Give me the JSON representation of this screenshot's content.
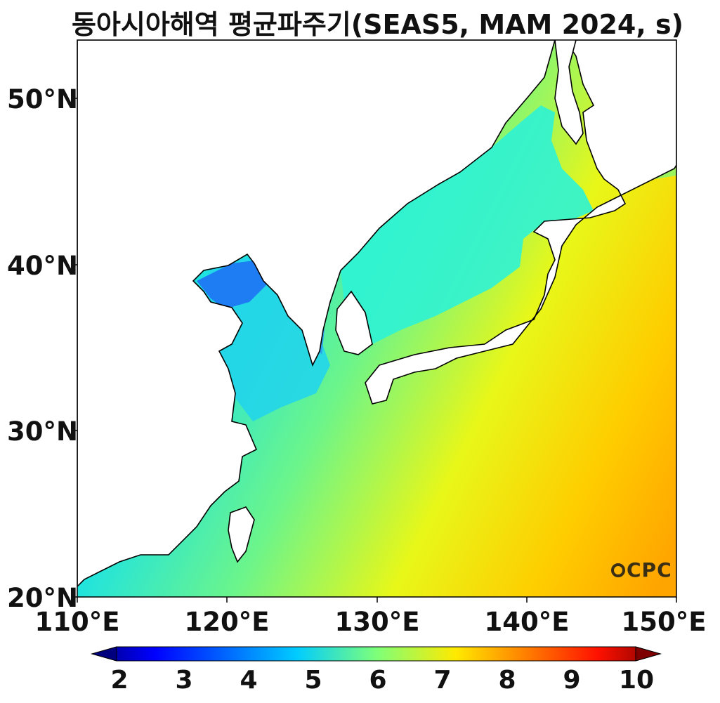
{
  "title": "동아시아해역 평균파주기(SEAS5, MAM 2024, s)",
  "map": {
    "lat_range": [
      20,
      53.5
    ],
    "lon_range": [
      110,
      150
    ],
    "lat_ticks": [
      "20°N",
      "30°N",
      "40°N",
      "50°N"
    ],
    "lon_ticks": [
      "110°E",
      "120°E",
      "130°E",
      "140°E",
      "150°E"
    ]
  },
  "colorbar": {
    "min": 2,
    "max": 10,
    "ticks": [
      "2",
      "3",
      "4",
      "5",
      "6",
      "7",
      "8",
      "9",
      "10"
    ],
    "colormap": "jet",
    "extend": "both"
  },
  "logo": "OCPC",
  "colors": {
    "land": "#ffffff",
    "coastline": "#000000"
  }
}
